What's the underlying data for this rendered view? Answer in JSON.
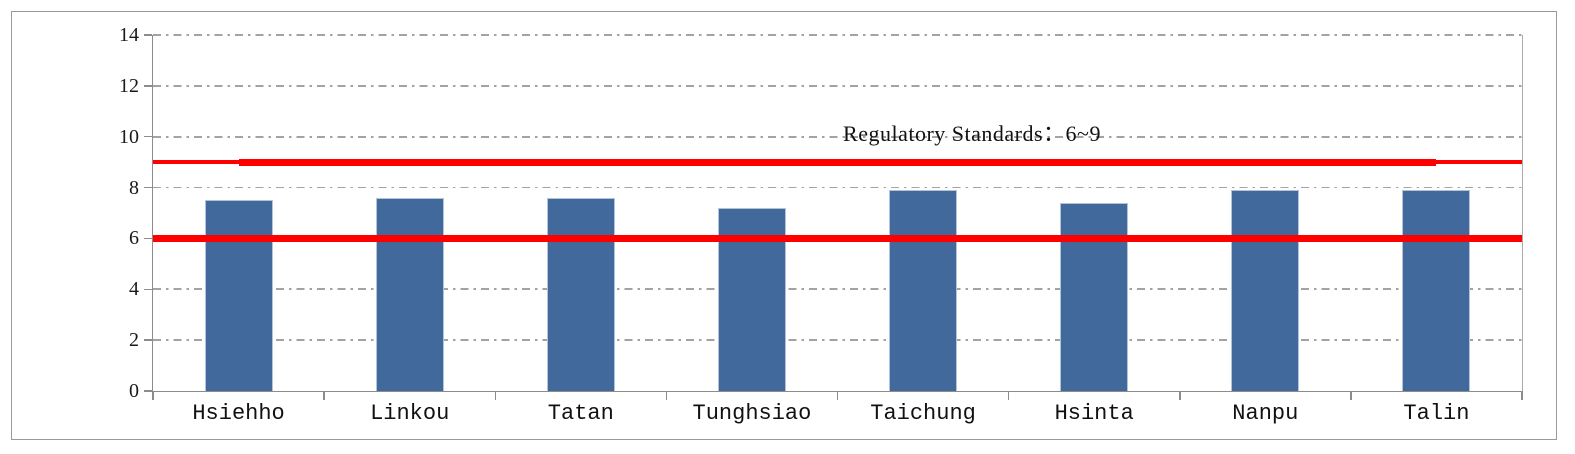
{
  "chart_data": {
    "type": "bar",
    "title": "",
    "xlabel": "",
    "ylabel": "",
    "categories": [
      "Hsiehho",
      "Linkou",
      "Tatan",
      "Tunghsiao",
      "Taichung",
      "Hsinta",
      "Nanpu",
      "Talin"
    ],
    "values": [
      7.5,
      7.6,
      7.6,
      7.2,
      7.9,
      7.4,
      7.9,
      7.9
    ],
    "ylim": [
      0,
      14
    ],
    "yticks": [
      0,
      2,
      4,
      6,
      8,
      10,
      12,
      14
    ],
    "grid": "horizontal-dash-dot",
    "legend": "none",
    "bar_color": "#41699C",
    "bar_border_color": "#B3C3DA",
    "gridline_color": "#A3A3A3",
    "axis_color": "#8C8C8C",
    "frame_color": "#9A9A9A",
    "annotation": {
      "text": "Regulatory Standards：6~9"
    },
    "reference_lines": [
      {
        "name": "lower-limit-line-blue",
        "value": 6.1,
        "color": "#41699C",
        "thickness": 2.5,
        "span": "categories",
        "layer": "back"
      },
      {
        "name": "upper-limit-line-thin",
        "value": 9,
        "color": "#FF0000",
        "thickness": 4,
        "span": "full",
        "layer": "front"
      },
      {
        "name": "upper-limit-line",
        "value": 9,
        "color": "#FF0000",
        "thickness": 7,
        "span": "categories",
        "layer": "front"
      },
      {
        "name": "lower-limit-line",
        "value": 6,
        "color": "#FF0000",
        "thickness": 7,
        "span": "full",
        "layer": "front"
      }
    ]
  }
}
